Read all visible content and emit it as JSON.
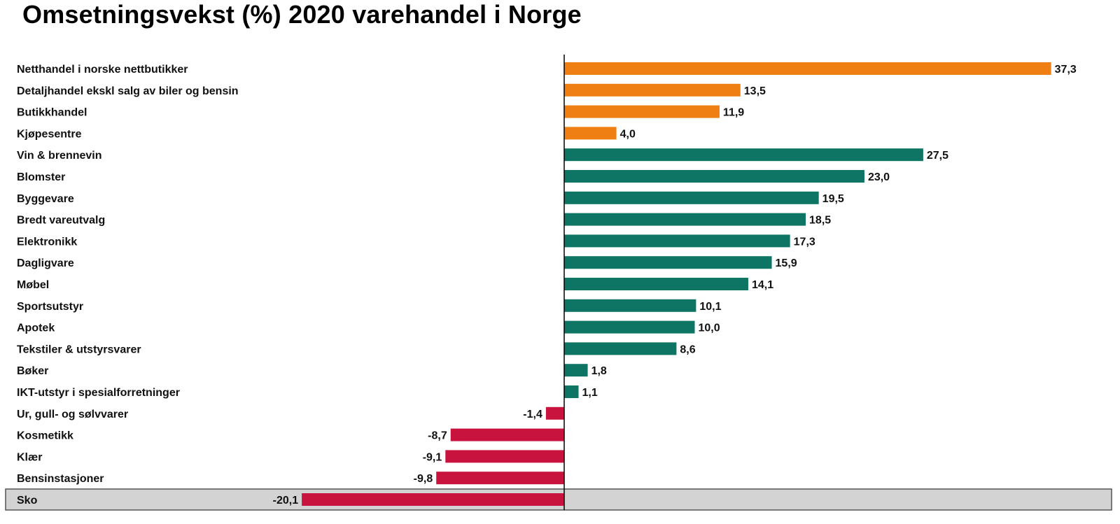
{
  "chart_data": {
    "type": "bar",
    "orientation": "horizontal",
    "title": "Omsetningsvekst (%) 2020 varehandel i Norge",
    "categories": [
      "Netthandel i norske nettbutikker",
      "Detaljhandel ekskl salg av biler og bensin",
      "Butikkhandel",
      "Kjøpesentre",
      "Vin & brennevin",
      "Blomster",
      "Byggevare",
      "Bredt vareutvalg",
      "Elektronikk",
      "Dagligvare",
      "Møbel",
      "Sportsutstyr",
      "Apotek",
      "Tekstiler & utstyrsvarer",
      "Bøker",
      "IKT-utstyr i spesialforretninger",
      "Ur, gull- og sølvvarer",
      "Kosmetikk",
      "Klær",
      "Bensinstasjoner",
      "Sko"
    ],
    "values": [
      37.3,
      13.5,
      11.9,
      4.0,
      27.5,
      23.0,
      19.5,
      18.5,
      17.3,
      15.9,
      14.1,
      10.1,
      10.0,
      8.6,
      1.8,
      1.1,
      -1.4,
      -8.7,
      -9.1,
      -9.8,
      -20.1
    ],
    "value_labels": [
      "37,3",
      "13,5",
      "11,9",
      "4,0",
      "27,5",
      "23,0",
      "19,5",
      "18,5",
      "17,3",
      "15,9",
      "14,1",
      "10,1",
      "10,0",
      "8,6",
      "1,8",
      "1,1",
      "-1,4",
      "-8,7",
      "-9,1",
      "-9,8",
      "-20,1"
    ],
    "groups": [
      "orange",
      "orange",
      "orange",
      "orange",
      "teal",
      "teal",
      "teal",
      "teal",
      "teal",
      "teal",
      "teal",
      "teal",
      "teal",
      "teal",
      "teal",
      "teal",
      "red",
      "red",
      "red",
      "red",
      "red"
    ],
    "highlighted_category": "Sko",
    "xlim": [
      -23.5,
      41.5
    ],
    "grid": false,
    "legend": "none"
  },
  "colors": {
    "orange": "#f07f13",
    "teal": "#0e7565",
    "red": "#c8133f",
    "highlight_bg": "#d3d3d3",
    "axis": "#000000"
  }
}
